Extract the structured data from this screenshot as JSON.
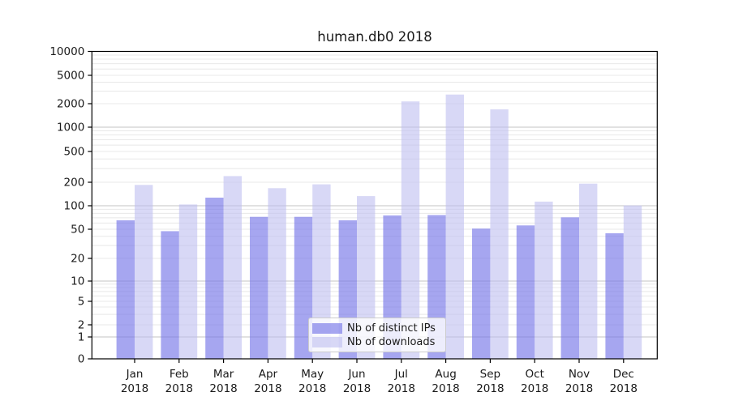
{
  "title": "human.db0 2018",
  "chart_data": {
    "type": "bar",
    "title": "human.db0 2018",
    "categories": [
      "Jan",
      "Feb",
      "Mar",
      "Apr",
      "May",
      "Jun",
      "Jul",
      "Aug",
      "Sep",
      "Oct",
      "Nov",
      "Dec"
    ],
    "x_year_label": "2018",
    "series": [
      {
        "name": "Nb of distinct IPs",
        "color": "#7676e8",
        "alpha": 0.65,
        "values": [
          65,
          47,
          127,
          72,
          72,
          65,
          75,
          76,
          51,
          56,
          71,
          44
        ]
      },
      {
        "name": "Nb of downloads",
        "color": "#bebef0",
        "alpha": 0.6,
        "values": [
          185,
          104,
          240,
          168,
          188,
          133,
          2150,
          2690,
          1690,
          113,
          192,
          101
        ]
      }
    ],
    "y_ticks": [
      0,
      1,
      2,
      5,
      10,
      20,
      50,
      100,
      200,
      500,
      1000,
      2000,
      5000,
      10000
    ],
    "ylim": [
      0,
      10000
    ],
    "yscale": "symlog",
    "grid": true,
    "legend_position": "lower center"
  },
  "colors": {
    "spine": "#000000",
    "major_grid": "#c3c3c3",
    "minor_grid": "#e8e8e8",
    "tick_label": "#1a1a1a"
  }
}
